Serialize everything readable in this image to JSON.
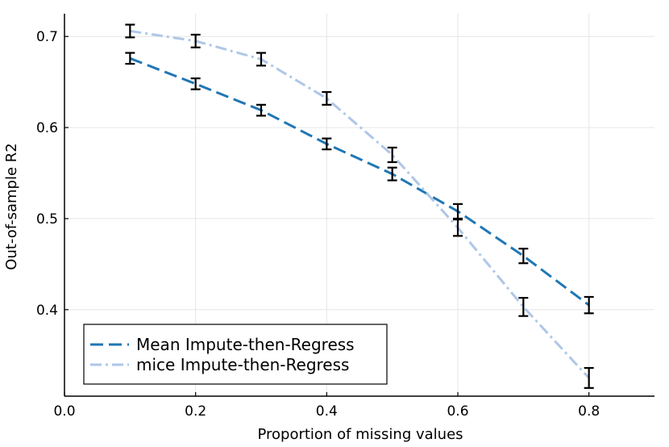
{
  "chart_data": {
    "type": "line",
    "title": "",
    "xlabel": "Proportion of missing values",
    "ylabel": "Out-of-sample R2",
    "xlim": [
      0.0,
      0.9
    ],
    "ylim": [
      0.305,
      0.725
    ],
    "xticks": [
      0.0,
      0.2,
      0.4,
      0.6,
      0.8
    ],
    "xtick_labels": [
      "0.0",
      "0.2",
      "0.4",
      "0.6",
      "0.8"
    ],
    "yticks": [
      0.4,
      0.5,
      0.6,
      0.7
    ],
    "ytick_labels": [
      "0.4",
      "0.5",
      "0.6",
      "0.7"
    ],
    "grid": true,
    "legend_position": "bottom-left",
    "x": [
      0.1,
      0.2,
      0.3,
      0.4,
      0.5,
      0.6,
      0.7,
      0.8
    ],
    "series": [
      {
        "name": "Mean Impute-then-Regress",
        "color": "#1f77b4",
        "line_style": "dashed",
        "values": [
          0.676,
          0.648,
          0.619,
          0.582,
          0.549,
          0.508,
          0.459,
          0.405
        ],
        "error": [
          0.006,
          0.006,
          0.006,
          0.006,
          0.007,
          0.008,
          0.008,
          0.009
        ]
      },
      {
        "name": "mice Impute-then-Regress",
        "color": "#aec7e8",
        "line_style": "dashdot",
        "values": [
          0.706,
          0.695,
          0.675,
          0.632,
          0.57,
          0.49,
          0.403,
          0.325
        ],
        "error": [
          0.007,
          0.007,
          0.007,
          0.007,
          0.008,
          0.009,
          0.01,
          0.011
        ]
      }
    ]
  }
}
